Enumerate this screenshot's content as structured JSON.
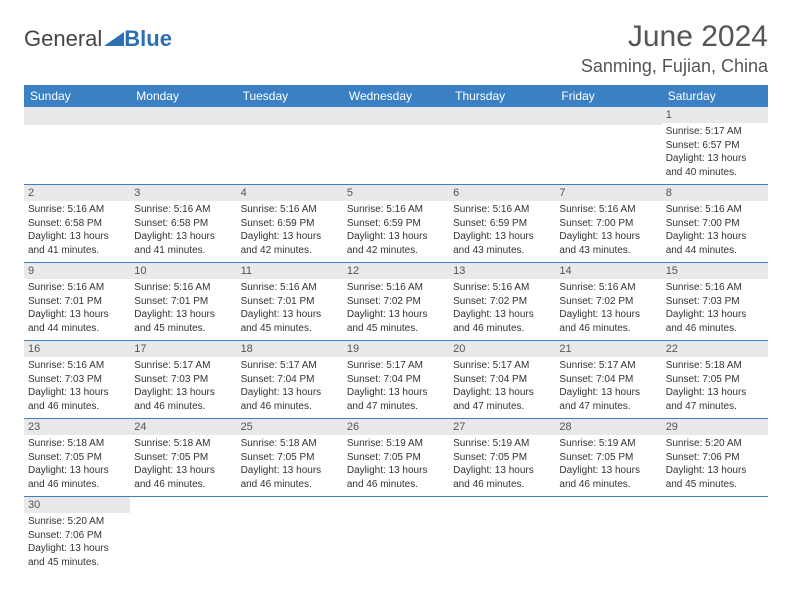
{
  "logo": {
    "part1": "General",
    "part2": "Blue"
  },
  "title": "June 2024",
  "location": "Sanming, Fujian, China",
  "colors": {
    "header_bg": "#3a80c3",
    "header_text": "#ffffff",
    "daynum_bg": "#e9e9e9",
    "cell_border": "#3a80c3",
    "text": "#333333",
    "title_text": "#555555"
  },
  "day_headers": [
    "Sunday",
    "Monday",
    "Tuesday",
    "Wednesday",
    "Thursday",
    "Friday",
    "Saturday"
  ],
  "weeks": [
    [
      null,
      null,
      null,
      null,
      null,
      null,
      {
        "n": "1",
        "sr": "Sunrise: 5:17 AM",
        "ss": "Sunset: 6:57 PM",
        "dl1": "Daylight: 13 hours",
        "dl2": "and 40 minutes."
      }
    ],
    [
      {
        "n": "2",
        "sr": "Sunrise: 5:16 AM",
        "ss": "Sunset: 6:58 PM",
        "dl1": "Daylight: 13 hours",
        "dl2": "and 41 minutes."
      },
      {
        "n": "3",
        "sr": "Sunrise: 5:16 AM",
        "ss": "Sunset: 6:58 PM",
        "dl1": "Daylight: 13 hours",
        "dl2": "and 41 minutes."
      },
      {
        "n": "4",
        "sr": "Sunrise: 5:16 AM",
        "ss": "Sunset: 6:59 PM",
        "dl1": "Daylight: 13 hours",
        "dl2": "and 42 minutes."
      },
      {
        "n": "5",
        "sr": "Sunrise: 5:16 AM",
        "ss": "Sunset: 6:59 PM",
        "dl1": "Daylight: 13 hours",
        "dl2": "and 42 minutes."
      },
      {
        "n": "6",
        "sr": "Sunrise: 5:16 AM",
        "ss": "Sunset: 6:59 PM",
        "dl1": "Daylight: 13 hours",
        "dl2": "and 43 minutes."
      },
      {
        "n": "7",
        "sr": "Sunrise: 5:16 AM",
        "ss": "Sunset: 7:00 PM",
        "dl1": "Daylight: 13 hours",
        "dl2": "and 43 minutes."
      },
      {
        "n": "8",
        "sr": "Sunrise: 5:16 AM",
        "ss": "Sunset: 7:00 PM",
        "dl1": "Daylight: 13 hours",
        "dl2": "and 44 minutes."
      }
    ],
    [
      {
        "n": "9",
        "sr": "Sunrise: 5:16 AM",
        "ss": "Sunset: 7:01 PM",
        "dl1": "Daylight: 13 hours",
        "dl2": "and 44 minutes."
      },
      {
        "n": "10",
        "sr": "Sunrise: 5:16 AM",
        "ss": "Sunset: 7:01 PM",
        "dl1": "Daylight: 13 hours",
        "dl2": "and 45 minutes."
      },
      {
        "n": "11",
        "sr": "Sunrise: 5:16 AM",
        "ss": "Sunset: 7:01 PM",
        "dl1": "Daylight: 13 hours",
        "dl2": "and 45 minutes."
      },
      {
        "n": "12",
        "sr": "Sunrise: 5:16 AM",
        "ss": "Sunset: 7:02 PM",
        "dl1": "Daylight: 13 hours",
        "dl2": "and 45 minutes."
      },
      {
        "n": "13",
        "sr": "Sunrise: 5:16 AM",
        "ss": "Sunset: 7:02 PM",
        "dl1": "Daylight: 13 hours",
        "dl2": "and 46 minutes."
      },
      {
        "n": "14",
        "sr": "Sunrise: 5:16 AM",
        "ss": "Sunset: 7:02 PM",
        "dl1": "Daylight: 13 hours",
        "dl2": "and 46 minutes."
      },
      {
        "n": "15",
        "sr": "Sunrise: 5:16 AM",
        "ss": "Sunset: 7:03 PM",
        "dl1": "Daylight: 13 hours",
        "dl2": "and 46 minutes."
      }
    ],
    [
      {
        "n": "16",
        "sr": "Sunrise: 5:16 AM",
        "ss": "Sunset: 7:03 PM",
        "dl1": "Daylight: 13 hours",
        "dl2": "and 46 minutes."
      },
      {
        "n": "17",
        "sr": "Sunrise: 5:17 AM",
        "ss": "Sunset: 7:03 PM",
        "dl1": "Daylight: 13 hours",
        "dl2": "and 46 minutes."
      },
      {
        "n": "18",
        "sr": "Sunrise: 5:17 AM",
        "ss": "Sunset: 7:04 PM",
        "dl1": "Daylight: 13 hours",
        "dl2": "and 46 minutes."
      },
      {
        "n": "19",
        "sr": "Sunrise: 5:17 AM",
        "ss": "Sunset: 7:04 PM",
        "dl1": "Daylight: 13 hours",
        "dl2": "and 47 minutes."
      },
      {
        "n": "20",
        "sr": "Sunrise: 5:17 AM",
        "ss": "Sunset: 7:04 PM",
        "dl1": "Daylight: 13 hours",
        "dl2": "and 47 minutes."
      },
      {
        "n": "21",
        "sr": "Sunrise: 5:17 AM",
        "ss": "Sunset: 7:04 PM",
        "dl1": "Daylight: 13 hours",
        "dl2": "and 47 minutes."
      },
      {
        "n": "22",
        "sr": "Sunrise: 5:18 AM",
        "ss": "Sunset: 7:05 PM",
        "dl1": "Daylight: 13 hours",
        "dl2": "and 47 minutes."
      }
    ],
    [
      {
        "n": "23",
        "sr": "Sunrise: 5:18 AM",
        "ss": "Sunset: 7:05 PM",
        "dl1": "Daylight: 13 hours",
        "dl2": "and 46 minutes."
      },
      {
        "n": "24",
        "sr": "Sunrise: 5:18 AM",
        "ss": "Sunset: 7:05 PM",
        "dl1": "Daylight: 13 hours",
        "dl2": "and 46 minutes."
      },
      {
        "n": "25",
        "sr": "Sunrise: 5:18 AM",
        "ss": "Sunset: 7:05 PM",
        "dl1": "Daylight: 13 hours",
        "dl2": "and 46 minutes."
      },
      {
        "n": "26",
        "sr": "Sunrise: 5:19 AM",
        "ss": "Sunset: 7:05 PM",
        "dl1": "Daylight: 13 hours",
        "dl2": "and 46 minutes."
      },
      {
        "n": "27",
        "sr": "Sunrise: 5:19 AM",
        "ss": "Sunset: 7:05 PM",
        "dl1": "Daylight: 13 hours",
        "dl2": "and 46 minutes."
      },
      {
        "n": "28",
        "sr": "Sunrise: 5:19 AM",
        "ss": "Sunset: 7:05 PM",
        "dl1": "Daylight: 13 hours",
        "dl2": "and 46 minutes."
      },
      {
        "n": "29",
        "sr": "Sunrise: 5:20 AM",
        "ss": "Sunset: 7:06 PM",
        "dl1": "Daylight: 13 hours",
        "dl2": "and 45 minutes."
      }
    ],
    [
      {
        "n": "30",
        "sr": "Sunrise: 5:20 AM",
        "ss": "Sunset: 7:06 PM",
        "dl1": "Daylight: 13 hours",
        "dl2": "and 45 minutes."
      },
      null,
      null,
      null,
      null,
      null,
      null
    ]
  ]
}
